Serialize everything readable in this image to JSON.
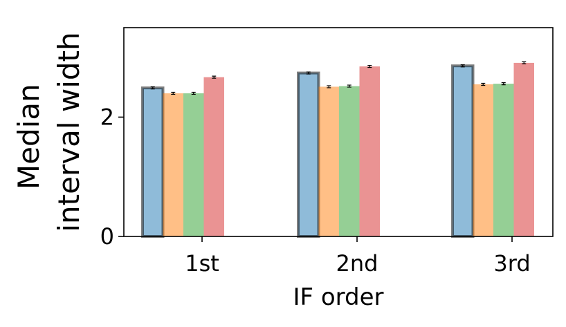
{
  "chart_data": {
    "type": "bar",
    "categories": [
      "1st",
      "2nd",
      "3rd"
    ],
    "series": [
      {
        "values": [
          2.49,
          2.74,
          2.86
        ],
        "color": "#1f77b4",
        "highlighted": true
      },
      {
        "values": [
          2.4,
          2.51,
          2.55
        ],
        "color": "#ff7f0e"
      },
      {
        "values": [
          2.4,
          2.52,
          2.56
        ],
        "color": "#2ca02c"
      },
      {
        "values": [
          2.67,
          2.85,
          2.91
        ],
        "color": "#d62728"
      }
    ],
    "error_bars": true,
    "bar_alpha": 0.5,
    "xlabel": "IF order",
    "ylabel_lines": [
      "Median",
      "interval width"
    ],
    "ylim": [
      0,
      3.5
    ],
    "yticks": [
      0,
      2
    ],
    "grid": false,
    "legend": "none"
  }
}
